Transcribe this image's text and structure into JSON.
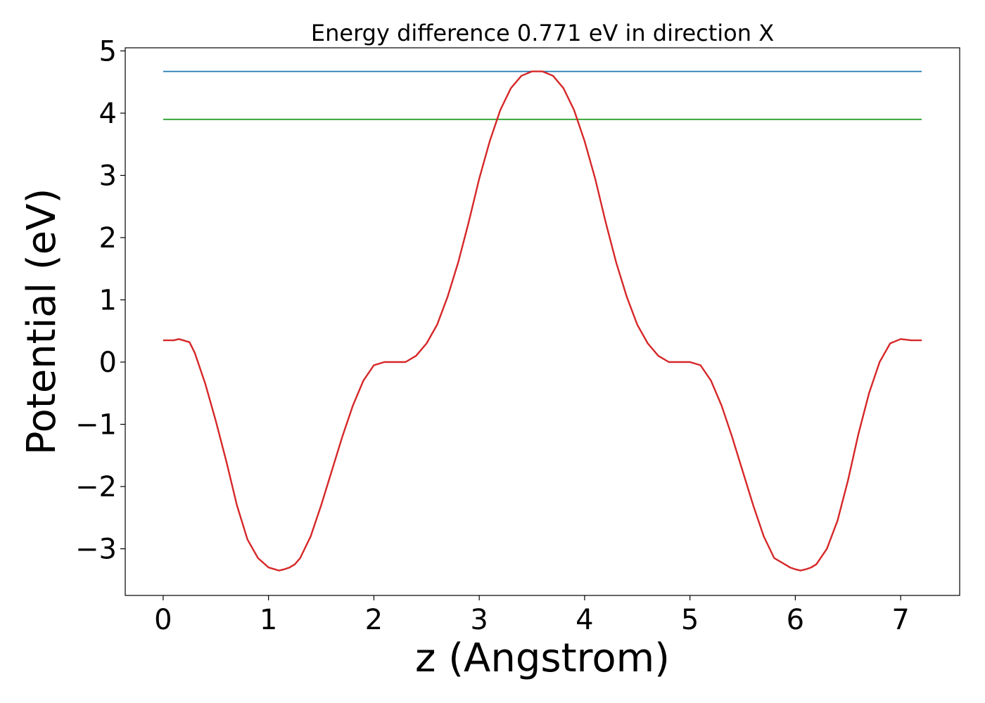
{
  "chart_data": {
    "type": "line",
    "title": "Energy difference 0.771 eV in direction X",
    "xlabel": "z (Angstrom)",
    "ylabel": "Potential (eV)",
    "xlim": [
      -0.36,
      7.56
    ],
    "ylim": [
      -3.75,
      5.05
    ],
    "x_ticks": [
      0,
      1,
      2,
      3,
      4,
      5,
      6,
      7
    ],
    "x_tick_labels": [
      "0",
      "1",
      "2",
      "3",
      "4",
      "5",
      "6",
      "7"
    ],
    "y_ticks": [
      -3,
      -2,
      -1,
      0,
      1,
      2,
      3,
      4,
      5
    ],
    "y_tick_labels": [
      "−3",
      "−2",
      "−1",
      "0",
      "1",
      "2",
      "3",
      "4",
      "5"
    ],
    "grid": false,
    "series": [
      {
        "color": "#1f77b4",
        "x": [
          0,
          7.2
        ],
        "y": [
          4.67,
          4.67
        ]
      },
      {
        "color": "#2ca02c",
        "x": [
          0,
          7.2
        ],
        "y": [
          3.9,
          3.9
        ]
      },
      {
        "color": "#d62728",
        "x": [
          0,
          0.1,
          0.15,
          0.25,
          0.3,
          0.4,
          0.5,
          0.6,
          0.7,
          0.8,
          0.9,
          1.0,
          1.1,
          1.15,
          1.2,
          1.25,
          1.3,
          1.4,
          1.5,
          1.6,
          1.7,
          1.8,
          1.9,
          2.0,
          2.1,
          2.2,
          2.3,
          2.4,
          2.5,
          2.6,
          2.7,
          2.8,
          2.9,
          3.0,
          3.1,
          3.2,
          3.3,
          3.4,
          3.5,
          3.6,
          3.7,
          3.8,
          3.9,
          4.0,
          4.1,
          4.2,
          4.3,
          4.4,
          4.5,
          4.6,
          4.7,
          4.8,
          4.9,
          5.0,
          5.1,
          5.2,
          5.3,
          5.4,
          5.5,
          5.6,
          5.7,
          5.8,
          5.9,
          5.95,
          6.0,
          6.05,
          6.1,
          6.15,
          6.2,
          6.3,
          6.4,
          6.5,
          6.6,
          6.7,
          6.8,
          6.9,
          7.0,
          7.1,
          7.2
        ],
        "y": [
          0.35,
          0.35,
          0.37,
          0.32,
          0.15,
          -0.35,
          -0.95,
          -1.6,
          -2.3,
          -2.85,
          -3.15,
          -3.3,
          -3.35,
          -3.33,
          -3.3,
          -3.25,
          -3.15,
          -2.8,
          -2.3,
          -1.75,
          -1.2,
          -0.7,
          -0.3,
          -0.05,
          0.0,
          0.0,
          0.0,
          0.1,
          0.3,
          0.6,
          1.05,
          1.6,
          2.25,
          2.95,
          3.55,
          4.05,
          4.4,
          4.6,
          4.67,
          4.67,
          4.6,
          4.4,
          4.05,
          3.55,
          2.95,
          2.25,
          1.6,
          1.05,
          0.6,
          0.3,
          0.1,
          0.0,
          0.0,
          0.0,
          -0.05,
          -0.3,
          -0.7,
          -1.2,
          -1.75,
          -2.3,
          -2.8,
          -3.15,
          -3.25,
          -3.3,
          -3.33,
          -3.35,
          -3.33,
          -3.3,
          -3.25,
          -3.0,
          -2.55,
          -1.9,
          -1.15,
          -0.5,
          0.0,
          0.3,
          0.37,
          0.35,
          0.35
        ]
      }
    ]
  }
}
